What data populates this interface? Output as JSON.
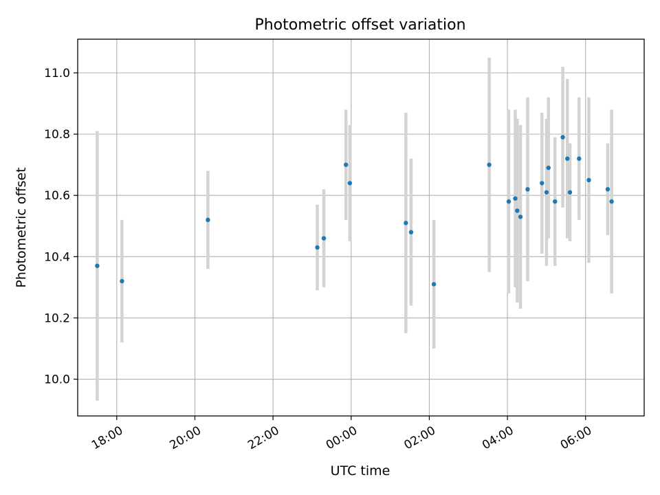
{
  "chart_data": {
    "type": "scatter",
    "title": "Photometric offset variation",
    "xlabel": "UTC time",
    "ylabel": "Photometric offset",
    "grid": true,
    "legend": "none",
    "x_axis": {
      "kind": "time",
      "range": [
        "17:00",
        "07:30"
      ],
      "tick_labels": [
        "18:00",
        "20:00",
        "22:00",
        "00:00",
        "02:00",
        "04:00",
        "06:00"
      ]
    },
    "y_axis": {
      "range": [
        9.88,
        11.11
      ],
      "tick_values": [
        10.0,
        10.2,
        10.4,
        10.6,
        10.8,
        11.0
      ],
      "tick_labels": [
        "10.0",
        "10.2",
        "10.4",
        "10.6",
        "10.8",
        "11.0"
      ]
    },
    "colors": {
      "point": "#1f77b4",
      "errorbar": "#d3d3d3",
      "grid": "#b0b0b0",
      "axes": "#000000"
    },
    "points": [
      {
        "x": "17:30",
        "y": 10.37,
        "err": 0.44
      },
      {
        "x": "18:08",
        "y": 10.32,
        "err": 0.2
      },
      {
        "x": "20:20",
        "y": 10.52,
        "err": 0.16
      },
      {
        "x": "23:08",
        "y": 10.43,
        "err": 0.14
      },
      {
        "x": "23:18",
        "y": 10.46,
        "err": 0.16
      },
      {
        "x": "23:52",
        "y": 10.7,
        "err": 0.18
      },
      {
        "x": "23:58",
        "y": 10.64,
        "err": 0.19
      },
      {
        "x": "01:24",
        "y": 10.51,
        "err": 0.36
      },
      {
        "x": "01:32",
        "y": 10.48,
        "err": 0.24
      },
      {
        "x": "02:07",
        "y": 10.31,
        "err": 0.21
      },
      {
        "x": "03:32",
        "y": 10.7,
        "err": 0.35
      },
      {
        "x": "04:02",
        "y": 10.58,
        "err": 0.3
      },
      {
        "x": "04:12",
        "y": 10.59,
        "err": 0.29
      },
      {
        "x": "04:15",
        "y": 10.55,
        "err": 0.3
      },
      {
        "x": "04:20",
        "y": 10.53,
        "err": 0.3
      },
      {
        "x": "04:31",
        "y": 10.62,
        "err": 0.3
      },
      {
        "x": "04:53",
        "y": 10.64,
        "err": 0.23
      },
      {
        "x": "05:00",
        "y": 10.61,
        "err": 0.24
      },
      {
        "x": "05:03",
        "y": 10.69,
        "err": 0.23
      },
      {
        "x": "05:13",
        "y": 10.58,
        "err": 0.21
      },
      {
        "x": "05:25",
        "y": 10.79,
        "err": 0.23
      },
      {
        "x": "05:32",
        "y": 10.72,
        "err": 0.26
      },
      {
        "x": "05:36",
        "y": 10.61,
        "err": 0.16
      },
      {
        "x": "05:50",
        "y": 10.72,
        "err": 0.2
      },
      {
        "x": "06:05",
        "y": 10.65,
        "err": 0.27
      },
      {
        "x": "06:34",
        "y": 10.62,
        "err": 0.15
      },
      {
        "x": "06:40",
        "y": 10.58,
        "err": 0.3
      }
    ]
  }
}
